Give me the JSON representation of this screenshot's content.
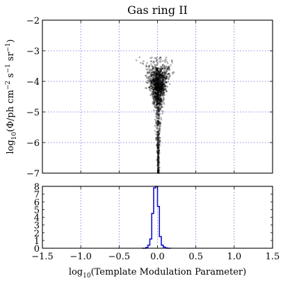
{
  "chart_data": [
    {
      "type": "scatter",
      "title": "Gas ring II",
      "xlabel": "",
      "ylabel": "log10(Φ/ph cm−2 s−1 sr−1)",
      "ylabel_parts": {
        "pre": "log",
        "pre_sub": "10",
        "mid": "(Φ/ph cm",
        "sup1": "−2",
        "mid2": " s",
        "sup2": "−1",
        "mid3": " sr",
        "sup3": "−1",
        "post": ")"
      },
      "xlim": [
        -1.5,
        1.5
      ],
      "ylim": [
        -7,
        -2
      ],
      "xticks": [
        -1.5,
        -1.0,
        -0.5,
        0.0,
        0.5,
        1.0,
        1.5
      ],
      "yticks": [
        -7,
        -6,
        -5,
        -4,
        -3,
        -2
      ],
      "ytick_labels": [
        "−7",
        "−6",
        "−5",
        "−4",
        "−3",
        "−2"
      ],
      "grid": true,
      "point_color": "#000000",
      "description_stats": {
        "x_center": 0.01,
        "y_top": -3.2
      }
    },
    {
      "type": "histogram",
      "xlabel": "log10(Template Modulation Parameter)",
      "xlabel_parts": {
        "pre": "log",
        "pre_sub": "10",
        "post": "(Template Modulation Parameter)"
      },
      "xlim": [
        -1.5,
        1.5
      ],
      "ylim": [
        0,
        8
      ],
      "xticks": [
        -1.5,
        -1.0,
        -0.5,
        0.0,
        0.5,
        1.0,
        1.5
      ],
      "xtick_labels": [
        "−1.5",
        "−1.0",
        "−0.5",
        "0.0",
        "0.5",
        "1.0",
        "1.5"
      ],
      "yticks": [
        0,
        1,
        2,
        3,
        4,
        5,
        6,
        7,
        8
      ],
      "ytick_labels": [
        "0",
        "1",
        "2",
        "3",
        "4",
        "5",
        "6",
        "7",
        "8"
      ],
      "grid": true,
      "line_color": "#1010d0",
      "bin_width": 0.025,
      "bin_edges_start": -0.15,
      "counts": [
        0.1,
        0.4,
        1.2,
        4.5,
        7.8,
        8.0,
        5.4,
        1.5,
        0.4,
        0.15,
        0.05
      ]
    }
  ]
}
